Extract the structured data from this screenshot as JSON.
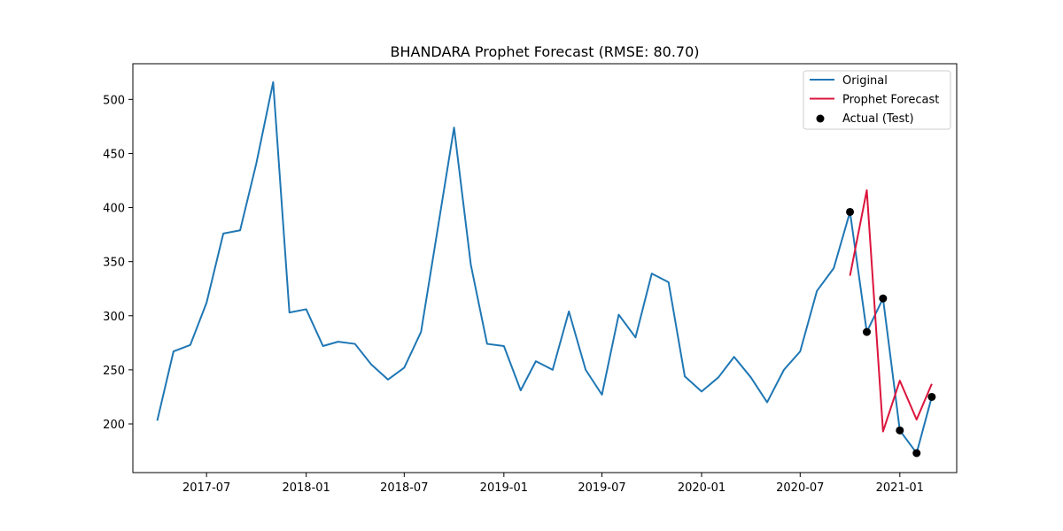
{
  "chart_data": {
    "type": "line",
    "title": "BHANDARA Prophet Forecast (RMSE: 80.70)",
    "xlabel": "",
    "ylabel": "",
    "x_axis_type": "date",
    "ylim": [
      155,
      533
    ],
    "xlim": [
      "2017-02-15",
      "2021-04-16"
    ],
    "x_ticks": [
      "2017-07-01",
      "2018-01-01",
      "2018-07-01",
      "2019-01-01",
      "2019-07-01",
      "2020-01-01",
      "2020-07-01",
      "2021-01-01"
    ],
    "x_tick_labels": [
      "2017-07",
      "2018-01",
      "2018-07",
      "2019-01",
      "2019-07",
      "2020-01",
      "2020-07",
      "2021-01"
    ],
    "y_ticks": [
      200,
      250,
      300,
      350,
      400,
      450,
      500
    ],
    "grid": false,
    "legend_position": "top-right",
    "series": [
      {
        "name": "Original",
        "kind": "line",
        "color": "#1f77b4",
        "points": [
          [
            "2017-04-01",
            203
          ],
          [
            "2017-05-01",
            267
          ],
          [
            "2017-06-01",
            273
          ],
          [
            "2017-07-01",
            312
          ],
          [
            "2017-08-01",
            376
          ],
          [
            "2017-09-01",
            379
          ],
          [
            "2017-10-01",
            441
          ],
          [
            "2017-11-01",
            516
          ],
          [
            "2017-12-01",
            303
          ],
          [
            "2018-01-01",
            306
          ],
          [
            "2018-02-01",
            272
          ],
          [
            "2018-03-01",
            276
          ],
          [
            "2018-04-01",
            274
          ],
          [
            "2018-05-01",
            255
          ],
          [
            "2018-06-01",
            241
          ],
          [
            "2018-07-01",
            252
          ],
          [
            "2018-08-01",
            285
          ],
          [
            "2018-09-01",
            381
          ],
          [
            "2018-10-01",
            474
          ],
          [
            "2018-11-01",
            347
          ],
          [
            "2018-12-01",
            274
          ],
          [
            "2019-01-01",
            272
          ],
          [
            "2019-02-01",
            231
          ],
          [
            "2019-03-01",
            258
          ],
          [
            "2019-04-01",
            250
          ],
          [
            "2019-05-01",
            304
          ],
          [
            "2019-06-01",
            250
          ],
          [
            "2019-07-01",
            227
          ],
          [
            "2019-08-01",
            301
          ],
          [
            "2019-09-01",
            280
          ],
          [
            "2019-10-01",
            339
          ],
          [
            "2019-11-01",
            331
          ],
          [
            "2019-12-01",
            244
          ],
          [
            "2020-01-01",
            230
          ],
          [
            "2020-02-01",
            243
          ],
          [
            "2020-03-01",
            262
          ],
          [
            "2020-04-01",
            243
          ],
          [
            "2020-05-01",
            220
          ],
          [
            "2020-06-01",
            250
          ],
          [
            "2020-07-01",
            267
          ],
          [
            "2020-08-01",
            323
          ],
          [
            "2020-09-01",
            344
          ],
          [
            "2020-10-01",
            396
          ],
          [
            "2020-11-01",
            285
          ],
          [
            "2020-12-01",
            316
          ],
          [
            "2021-01-01",
            194
          ],
          [
            "2021-02-01",
            173
          ],
          [
            "2021-03-01",
            225
          ]
        ]
      },
      {
        "name": "Prophet Forecast",
        "kind": "line",
        "color": "#dc143c",
        "points": [
          [
            "2020-10-01",
            337
          ],
          [
            "2020-11-01",
            416
          ],
          [
            "2020-12-01",
            193
          ],
          [
            "2021-01-01",
            240
          ],
          [
            "2021-02-01",
            204
          ],
          [
            "2021-03-01",
            237
          ]
        ]
      },
      {
        "name": "Actual (Test)",
        "kind": "scatter",
        "color": "#000000",
        "points": [
          [
            "2020-10-01",
            396
          ],
          [
            "2020-11-01",
            285
          ],
          [
            "2020-12-01",
            316
          ],
          [
            "2021-01-01",
            194
          ],
          [
            "2021-02-01",
            173
          ],
          [
            "2021-03-01",
            225
          ]
        ]
      }
    ]
  }
}
